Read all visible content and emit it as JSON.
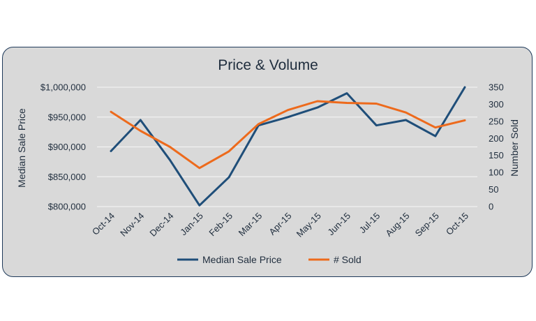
{
  "colors": {
    "background": "#d9d9d9",
    "border": "#1f3a5a",
    "price": "#1f4e79",
    "sold": "#ed6a1c",
    "grid": "#f2f2f2",
    "text": "#1f2d3d"
  },
  "chart_data": {
    "type": "line",
    "title": "Price & Volume",
    "categories": [
      "Oct-14",
      "Nov-14",
      "Dec-14",
      "Jan-15",
      "Feb-15",
      "Mar-15",
      "Apr-15",
      "May-15",
      "Jun-15",
      "Jul-15",
      "Aug-15",
      "Sep-15",
      "Oct-15"
    ],
    "y_left": {
      "label": "Median Sale Price",
      "range": [
        800000,
        1000000
      ],
      "ticks": [
        800000,
        850000,
        900000,
        950000,
        1000000
      ],
      "tick_labels": [
        "$800,000",
        "$850,000",
        "$900,000",
        "$950,000",
        "$1,000,000"
      ]
    },
    "y_right": {
      "label": "Number Sold",
      "range": [
        0,
        350
      ],
      "ticks": [
        0,
        50,
        100,
        150,
        200,
        250,
        300,
        350
      ],
      "tick_labels": [
        "0",
        "50",
        "100",
        "150",
        "200",
        "250",
        "300",
        "350"
      ]
    },
    "series": [
      {
        "name": "Median Sale Price",
        "axis": "left",
        "color": "#1f4e79",
        "values": [
          893000,
          945000,
          878000,
          802000,
          849000,
          936000,
          950000,
          966000,
          990000,
          936000,
          945000,
          918000,
          1000000
        ]
      },
      {
        "name": "# Sold",
        "axis": "right",
        "color": "#ed6a1c",
        "values": [
          278,
          222,
          175,
          113,
          162,
          242,
          283,
          309,
          304,
          302,
          276,
          232,
          253
        ]
      }
    ],
    "grid": true,
    "legend_position": "bottom"
  }
}
